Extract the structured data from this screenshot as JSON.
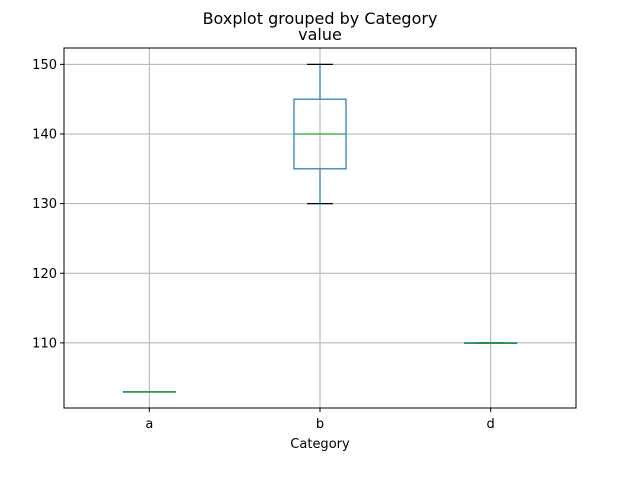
{
  "chart_data": {
    "type": "boxplot",
    "suptitle": "Boxplot grouped by Category",
    "title": "value",
    "xlabel": "Category",
    "ylabel": "",
    "categories": [
      "a",
      "b",
      "d"
    ],
    "boxes": [
      {
        "category": "a",
        "whislo": 103,
        "q1": 103,
        "med": 103,
        "q3": 103,
        "whishi": 103
      },
      {
        "category": "b",
        "whislo": 130,
        "q1": 135,
        "med": 140,
        "q3": 145,
        "whishi": 150
      },
      {
        "category": "d",
        "whislo": 110,
        "q1": 110,
        "med": 110,
        "q3": 110,
        "whishi": 110
      }
    ],
    "ylim": [
      100.65,
      152.35
    ],
    "yticks": [
      110,
      120,
      130,
      140,
      150
    ],
    "grid": true,
    "colors": {
      "box": "#1f77b4",
      "median": "#2ca02c",
      "whisker": "#1f77b4",
      "cap": "#000000",
      "grid": "#b0b0b0"
    }
  }
}
